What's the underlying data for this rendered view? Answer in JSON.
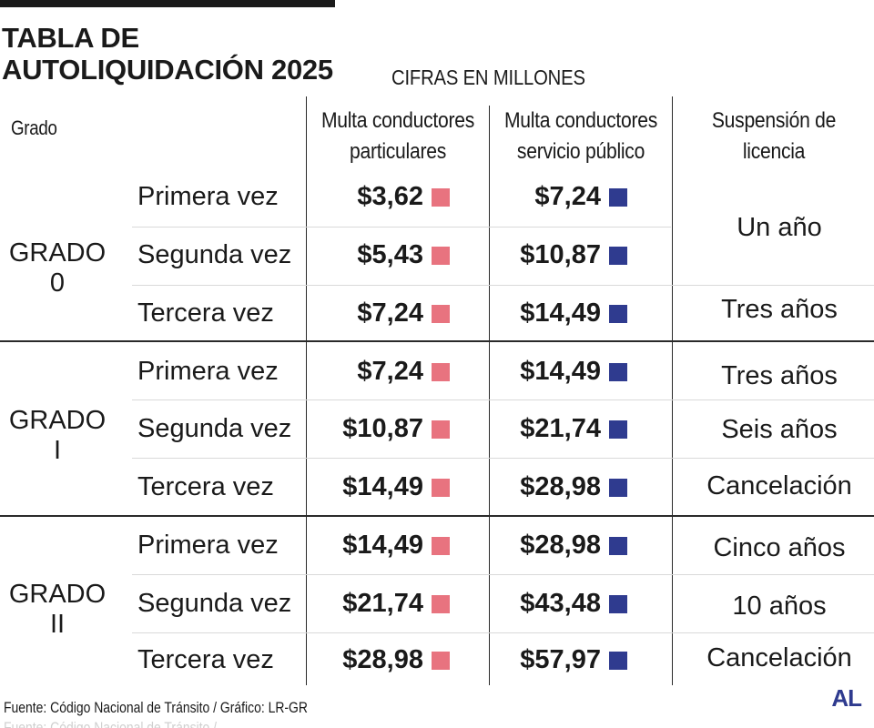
{
  "header": {
    "title_line1": "TABLA DE",
    "title_line2": "AUTOLIQUIDACIÓN 2025",
    "subtitle": "CIFRAS EN MILLONES"
  },
  "columns": {
    "grado": "Grado",
    "particulares_line1": "Multa conductores",
    "particulares_line2": "particulares",
    "publico_line1": "Multa conductores",
    "publico_line2": "servicio público",
    "suspension_line1": "Suspensión de",
    "suspension_line2": "licencia"
  },
  "colors": {
    "particulares": "#e8737f",
    "publico": "#2f3b8f"
  },
  "grades": [
    {
      "line1": "GRADO",
      "line2": "0",
      "rows": [
        {
          "label": "Primera vez",
          "particulares": "$3,62",
          "publico": "$7,24"
        },
        {
          "label": "Segunda vez",
          "particulares": "$5,43",
          "publico": "$10,87"
        },
        {
          "label": "Tercera vez",
          "particulares": "$7,24",
          "publico": "$14,49"
        }
      ],
      "suspension": [
        "Un año",
        "Tres años"
      ]
    },
    {
      "line1": "GRADO",
      "line2": "I",
      "rows": [
        {
          "label": "Primera vez",
          "particulares": "$7,24",
          "publico": "$14,49"
        },
        {
          "label": "Segunda vez",
          "particulares": "$10,87",
          "publico": "$21,74"
        },
        {
          "label": "Tercera vez",
          "particulares": "$14,49",
          "publico": "$28,98"
        }
      ],
      "suspension": [
        "Tres años",
        "Seis años",
        "Cancelación"
      ]
    },
    {
      "line1": "GRADO",
      "line2": "II",
      "rows": [
        {
          "label": "Primera vez",
          "particulares": "$14,49",
          "publico": "$28,98"
        },
        {
          "label": "Segunda vez",
          "particulares": "$21,74",
          "publico": "$43,48"
        },
        {
          "label": "Tercera vez",
          "particulares": "$28,98",
          "publico": "$57,97"
        }
      ],
      "suspension": [
        "Cinco años",
        "10 años",
        "Cancelación"
      ]
    }
  ],
  "footer": {
    "source": "Fuente: Código Nacional de Tránsito / Gráfico: LR-GR",
    "logo": "AL"
  },
  "chart_data": {
    "type": "table",
    "title": "TABLA DE AUTOLIQUIDACIÓN 2025",
    "subtitle": "CIFRAS EN MILLONES",
    "columns": [
      "Grado",
      "",
      "Multa conductores particulares",
      "Multa conductores servicio público",
      "Suspensión de licencia"
    ],
    "rows": [
      [
        "GRADO 0",
        "Primera vez",
        "$3,62",
        "$7,24",
        "Un año"
      ],
      [
        "GRADO 0",
        "Segunda vez",
        "$5,43",
        "$10,87",
        "Un año"
      ],
      [
        "GRADO 0",
        "Tercera vez",
        "$7,24",
        "$14,49",
        "Tres años"
      ],
      [
        "GRADO I",
        "Primera vez",
        "$7,24",
        "$14,49",
        "Tres años"
      ],
      [
        "GRADO I",
        "Segunda vez",
        "$10,87",
        "$21,74",
        "Seis años"
      ],
      [
        "GRADO I",
        "Tercera vez",
        "$14,49",
        "$28,98",
        "Cancelación"
      ],
      [
        "GRADO II",
        "Primera vez",
        "$14,49",
        "$28,98",
        "Cinco años"
      ],
      [
        "GRADO II",
        "Segunda vez",
        "$21,74",
        "$43,48",
        "10 años"
      ],
      [
        "GRADO II",
        "Tercera vez",
        "$28,98",
        "$57,97",
        "Cancelación"
      ]
    ]
  }
}
